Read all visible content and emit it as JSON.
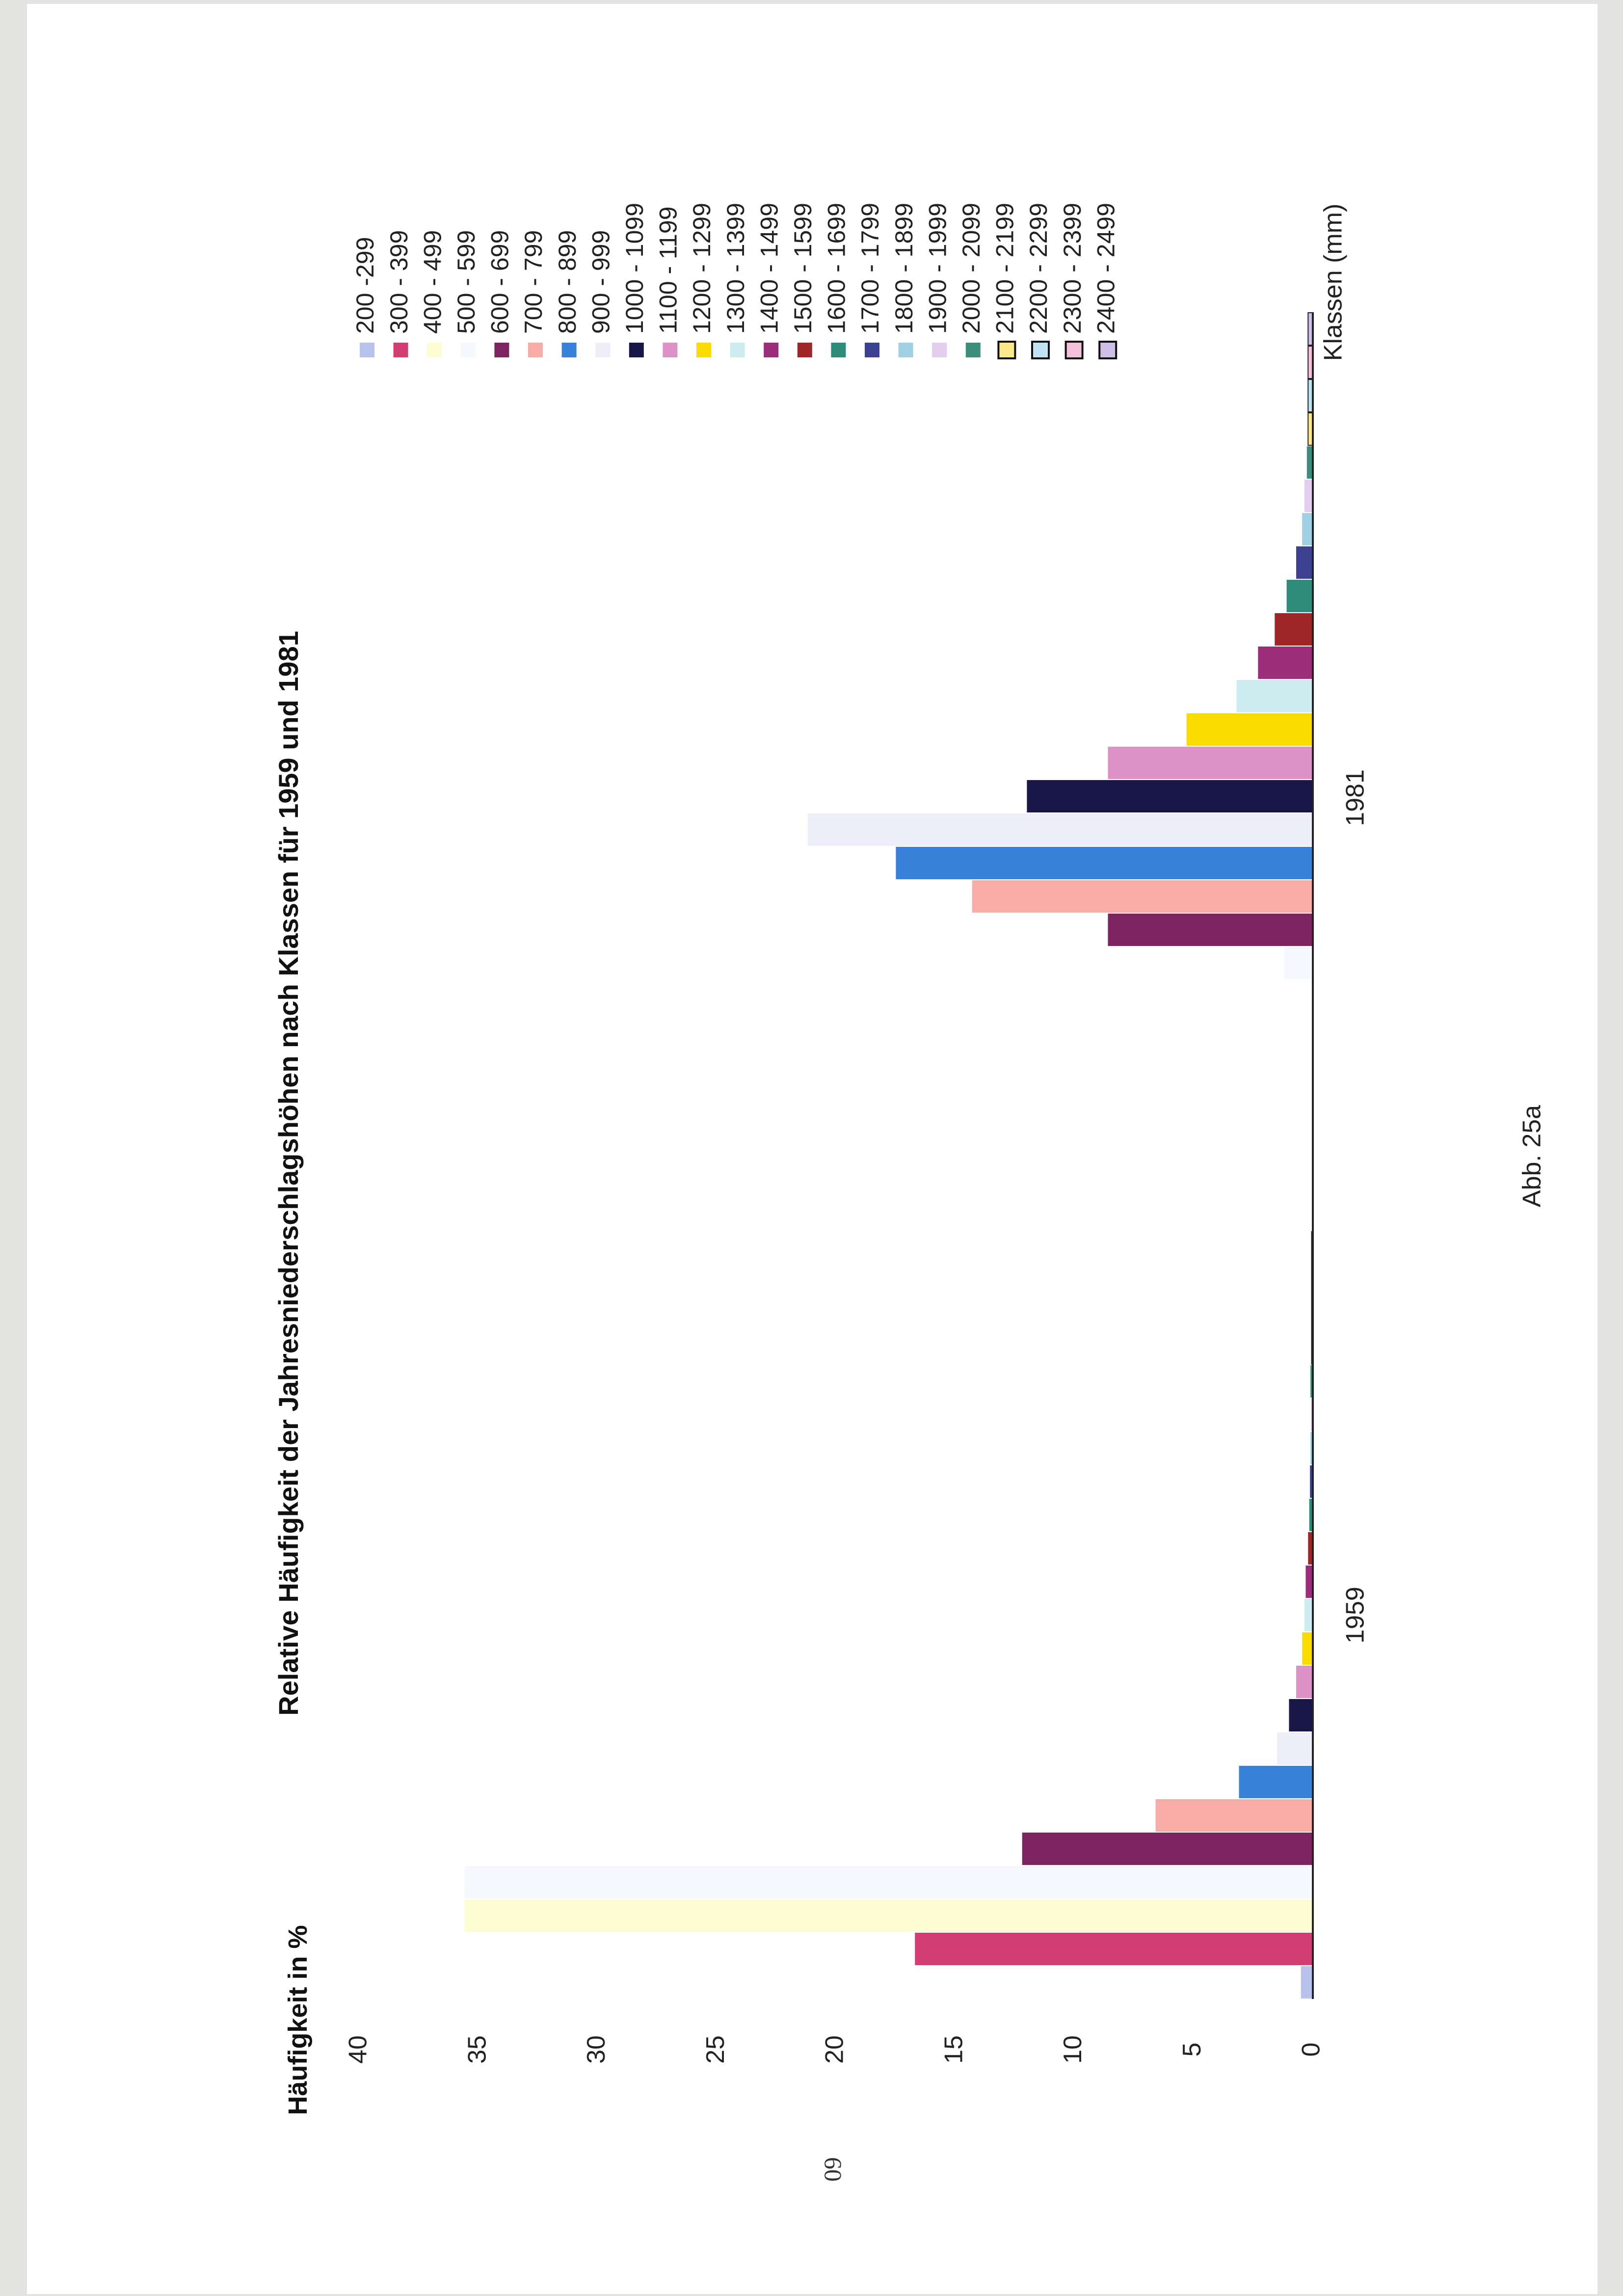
{
  "page_number": "60",
  "chart_data": {
    "type": "bar",
    "title": "Relative Häufigkeit der Jahresniederschlagshöhen nach Klassen für 1959 und 1981",
    "ylabel": "Häufigkeit in %",
    "xlabel": "",
    "ylim": [
      0,
      40
    ],
    "yticks": [
      "0",
      "5",
      "10",
      "15",
      "20",
      "25",
      "30",
      "35",
      "40"
    ],
    "orientation": "rotated-90",
    "groups": [
      "1959",
      "1981"
    ],
    "legend_title": "Klassen (mm)",
    "legend_position": "right",
    "caption": "Abb. 25a",
    "classes": [
      {
        "label": "200 -299",
        "color": "#b9c2ea",
        "v1959": 0.5,
        "v1981": 0.0
      },
      {
        "label": "300 - 399",
        "color": "#d33e72",
        "v1959": 16.7,
        "v1981": 0.0
      },
      {
        "label": "400 - 499",
        "color": "#fdfdd3",
        "v1959": 35.6,
        "v1981": 0.0
      },
      {
        "label": "500 - 599",
        "color": "#f5f8fc",
        "v1959": 35.6,
        "v1981": 1.2
      },
      {
        "label": "600 - 699",
        "color": "#7c2360",
        "v1959": 12.2,
        "v1981": 8.6
      },
      {
        "label": "700 - 799",
        "color": "#f8aca6",
        "v1959": 6.6,
        "v1981": 14.3
      },
      {
        "label": "800 - 899",
        "color": "#3781d8",
        "v1959": 3.1,
        "v1981": 17.5
      },
      {
        "label": "900 - 999",
        "color": "#eeeefb",
        "v1959": 1.5,
        "v1981": 21.2
      },
      {
        "label": "1000 - 1099",
        "color": "#181748",
        "v1959": 1.0,
        "v1981": 12.0
      },
      {
        "label": "1100 - 1199",
        "color": "#dc92c6",
        "v1959": 0.7,
        "v1981": 8.6
      },
      {
        "label": "1200 - 1299",
        "color": "#fcdc00",
        "v1959": 0.45,
        "v1981": 5.3
      },
      {
        "label": "1300 - 1399",
        "color": "#cdecef",
        "v1959": 0.35,
        "v1981": 3.2
      },
      {
        "label": "1400 - 1499",
        "color": "#9c2d7a",
        "v1959": 0.3,
        "v1981": 2.3
      },
      {
        "label": "1500 - 1599",
        "color": "#a02729",
        "v1959": 0.2,
        "v1981": 1.6
      },
      {
        "label": "1600 - 1699",
        "color": "#2f8c7a",
        "v1959": 0.15,
        "v1981": 1.1
      },
      {
        "label": "1700 - 1799",
        "color": "#3d3f91",
        "v1959": 0.12,
        "v1981": 0.7
      },
      {
        "label": "1800 - 1899",
        "color": "#9fd0e3",
        "v1959": 0.1,
        "v1981": 0.45
      },
      {
        "label": "1900 - 1999",
        "color": "#e2cdee",
        "v1959": 0.08,
        "v1981": 0.35
      },
      {
        "label": "2000 - 2099",
        "color": "#3c8d7c",
        "v1959": 0.1,
        "v1981": 0.25
      },
      {
        "label": "2100 - 2199",
        "color": "#fbe88a",
        "v1959": 0.05,
        "v1981": 0.2
      },
      {
        "label": "2200 - 2299",
        "color": "#c0e2f3",
        "v1959": 0.05,
        "v1981": 0.2
      },
      {
        "label": "2300 - 2399",
        "color": "#f5c0dc",
        "v1959": 0.05,
        "v1981": 0.2
      },
      {
        "label": "2400 - 2499",
        "color": "#cdbfe6",
        "v1959": 0.05,
        "v1981": 0.2
      }
    ]
  }
}
